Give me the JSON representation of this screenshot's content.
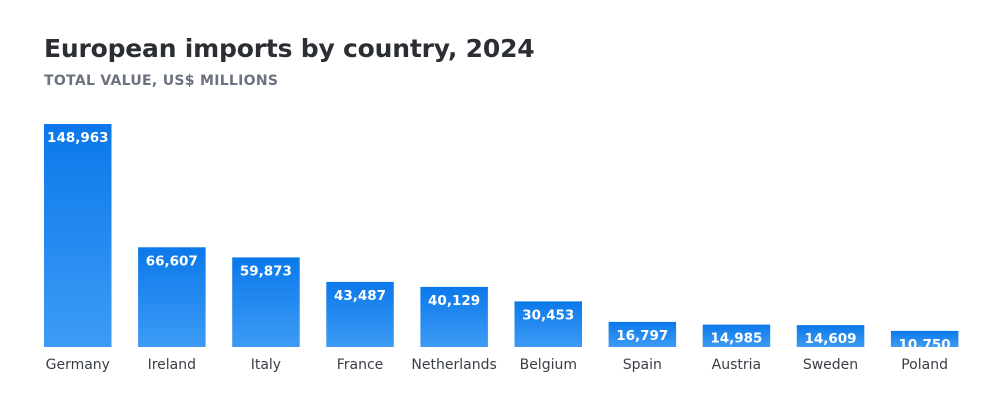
{
  "colors": {
    "bar_top": "#0b78ea",
    "bar_bottom": "#3d9bf5",
    "label": "#ffffff",
    "tick": "#3a3f45"
  },
  "chart_data": {
    "type": "bar",
    "title": "European imports by country, 2024",
    "subtitle": "TOTAL VALUE, US$ MILLIONS",
    "xlabel": "",
    "ylabel": "",
    "ylim": [
      0,
      148963
    ],
    "grid": false,
    "categories": [
      "Germany",
      "Ireland",
      "Italy",
      "France",
      "Netherlands",
      "Belgium",
      "Spain",
      "Austria",
      "Sweden",
      "Poland"
    ],
    "values": [
      148963,
      66607,
      59873,
      43487,
      40129,
      30453,
      16797,
      14985,
      14609,
      10750
    ],
    "value_labels": [
      "148,963",
      "66,607",
      "59,873",
      "43,487",
      "40,129",
      "30,453",
      "16,797",
      "14,985",
      "14,609",
      "10,750"
    ]
  }
}
